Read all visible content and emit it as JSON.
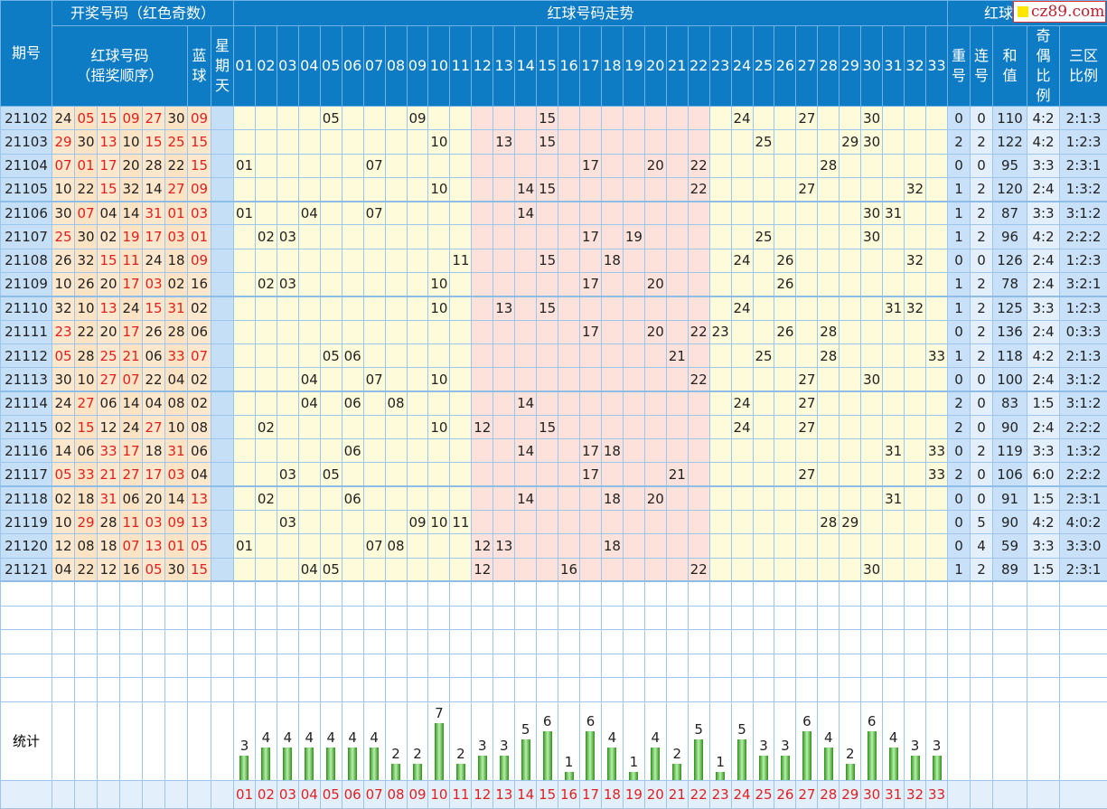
{
  "header": {
    "issue": "期号",
    "draw_title": "开奖号码（红色奇数）",
    "red_balls": "红球号码",
    "red_balls_sub": "（摇奖顺序）",
    "blue": "蓝球",
    "weekday": "星期天",
    "trend_title": "红球号码走势",
    "right_title": "红球",
    "repeat": "重号",
    "consecutive": "连号",
    "sum": "和值",
    "odd_even": "奇偶比例",
    "zone_ratio": "三区比例"
  },
  "logo": "cz89.com",
  "trend_numbers": [
    "01",
    "02",
    "03",
    "04",
    "05",
    "06",
    "07",
    "08",
    "09",
    "10",
    "11",
    "12",
    "13",
    "14",
    "15",
    "16",
    "17",
    "18",
    "19",
    "20",
    "21",
    "22",
    "23",
    "24",
    "25",
    "26",
    "27",
    "28",
    "29",
    "30",
    "31",
    "32",
    "33"
  ],
  "rows": [
    {
      "issue": "21102",
      "reds": [
        "24",
        "05",
        "15",
        "09",
        "27",
        "30"
      ],
      "blue": "09",
      "repeat": "0",
      "consec": "0",
      "sum": "110",
      "oe": "4:2",
      "zone": "2:1:3"
    },
    {
      "issue": "21103",
      "reds": [
        "29",
        "30",
        "13",
        "10",
        "15",
        "25"
      ],
      "blue": "15",
      "repeat": "2",
      "consec": "2",
      "sum": "122",
      "oe": "4:2",
      "zone": "1:2:3"
    },
    {
      "issue": "21104",
      "reds": [
        "07",
        "01",
        "17",
        "20",
        "28",
        "22"
      ],
      "blue": "15",
      "repeat": "0",
      "consec": "0",
      "sum": "95",
      "oe": "3:3",
      "zone": "2:3:1"
    },
    {
      "issue": "21105",
      "reds": [
        "10",
        "22",
        "15",
        "32",
        "14",
        "27"
      ],
      "blue": "09",
      "repeat": "1",
      "consec": "2",
      "sum": "120",
      "oe": "2:4",
      "zone": "1:3:2"
    },
    {
      "issue": "21106",
      "reds": [
        "30",
        "07",
        "04",
        "14",
        "31",
        "01"
      ],
      "blue": "03",
      "repeat": "1",
      "consec": "2",
      "sum": "87",
      "oe": "3:3",
      "zone": "3:1:2"
    },
    {
      "issue": "21107",
      "reds": [
        "25",
        "30",
        "02",
        "19",
        "17",
        "03"
      ],
      "blue": "01",
      "repeat": "1",
      "consec": "2",
      "sum": "96",
      "oe": "4:2",
      "zone": "2:2:2"
    },
    {
      "issue": "21108",
      "reds": [
        "26",
        "32",
        "15",
        "11",
        "24",
        "18"
      ],
      "blue": "09",
      "repeat": "0",
      "consec": "0",
      "sum": "126",
      "oe": "2:4",
      "zone": "1:2:3"
    },
    {
      "issue": "21109",
      "reds": [
        "10",
        "26",
        "20",
        "17",
        "03",
        "02"
      ],
      "blue": "16",
      "repeat": "1",
      "consec": "2",
      "sum": "78",
      "oe": "2:4",
      "zone": "3:2:1"
    },
    {
      "issue": "21110",
      "reds": [
        "32",
        "10",
        "13",
        "24",
        "15",
        "31"
      ],
      "blue": "02",
      "repeat": "1",
      "consec": "2",
      "sum": "125",
      "oe": "3:3",
      "zone": "1:2:3"
    },
    {
      "issue": "21111",
      "reds": [
        "23",
        "22",
        "20",
        "17",
        "26",
        "28"
      ],
      "blue": "06",
      "repeat": "0",
      "consec": "2",
      "sum": "136",
      "oe": "2:4",
      "zone": "0:3:3"
    },
    {
      "issue": "21112",
      "reds": [
        "05",
        "28",
        "25",
        "21",
        "06",
        "33"
      ],
      "blue": "07",
      "repeat": "1",
      "consec": "2",
      "sum": "118",
      "oe": "4:2",
      "zone": "2:1:3"
    },
    {
      "issue": "21113",
      "reds": [
        "30",
        "10",
        "27",
        "07",
        "22",
        "04"
      ],
      "blue": "02",
      "repeat": "0",
      "consec": "0",
      "sum": "100",
      "oe": "2:4",
      "zone": "3:1:2"
    },
    {
      "issue": "21114",
      "reds": [
        "24",
        "27",
        "06",
        "14",
        "04",
        "08"
      ],
      "blue": "02",
      "repeat": "2",
      "consec": "0",
      "sum": "83",
      "oe": "1:5",
      "zone": "3:1:2"
    },
    {
      "issue": "21115",
      "reds": [
        "02",
        "15",
        "12",
        "24",
        "27",
        "10"
      ],
      "blue": "08",
      "repeat": "2",
      "consec": "0",
      "sum": "90",
      "oe": "2:4",
      "zone": "2:2:2"
    },
    {
      "issue": "21116",
      "reds": [
        "14",
        "06",
        "33",
        "17",
        "18",
        "31"
      ],
      "blue": "06",
      "repeat": "0",
      "consec": "2",
      "sum": "119",
      "oe": "3:3",
      "zone": "1:3:2"
    },
    {
      "issue": "21117",
      "reds": [
        "05",
        "33",
        "21",
        "27",
        "17",
        "03"
      ],
      "blue": "04",
      "repeat": "2",
      "consec": "0",
      "sum": "106",
      "oe": "6:0",
      "zone": "2:2:2"
    },
    {
      "issue": "21118",
      "reds": [
        "02",
        "18",
        "31",
        "06",
        "20",
        "14"
      ],
      "blue": "13",
      "repeat": "0",
      "consec": "0",
      "sum": "91",
      "oe": "1:5",
      "zone": "2:3:1"
    },
    {
      "issue": "21119",
      "reds": [
        "10",
        "29",
        "28",
        "11",
        "03",
        "09"
      ],
      "blue": "13",
      "repeat": "0",
      "consec": "5",
      "sum": "90",
      "oe": "4:2",
      "zone": "4:0:2"
    },
    {
      "issue": "21120",
      "reds": [
        "12",
        "08",
        "18",
        "07",
        "13",
        "01"
      ],
      "blue": "05",
      "repeat": "0",
      "consec": "4",
      "sum": "59",
      "oe": "3:3",
      "zone": "3:3:0"
    },
    {
      "issue": "21121",
      "reds": [
        "04",
        "22",
        "12",
        "16",
        "05",
        "30"
      ],
      "blue": "15",
      "repeat": "1",
      "consec": "2",
      "sum": "89",
      "oe": "1:5",
      "zone": "2:3:1"
    }
  ],
  "stats": {
    "label": "统计",
    "counts": [
      3,
      4,
      4,
      4,
      4,
      4,
      4,
      2,
      2,
      7,
      2,
      3,
      3,
      5,
      6,
      1,
      6,
      4,
      1,
      4,
      2,
      5,
      1,
      5,
      3,
      3,
      6,
      4,
      2,
      6,
      4,
      3,
      3
    ]
  },
  "colors": {
    "header": "#0d7cc4",
    "odd": "#e02020",
    "bar": "#2e8f1e",
    "zone2": "#fde2dc",
    "zone13": "#fdfbd9"
  }
}
